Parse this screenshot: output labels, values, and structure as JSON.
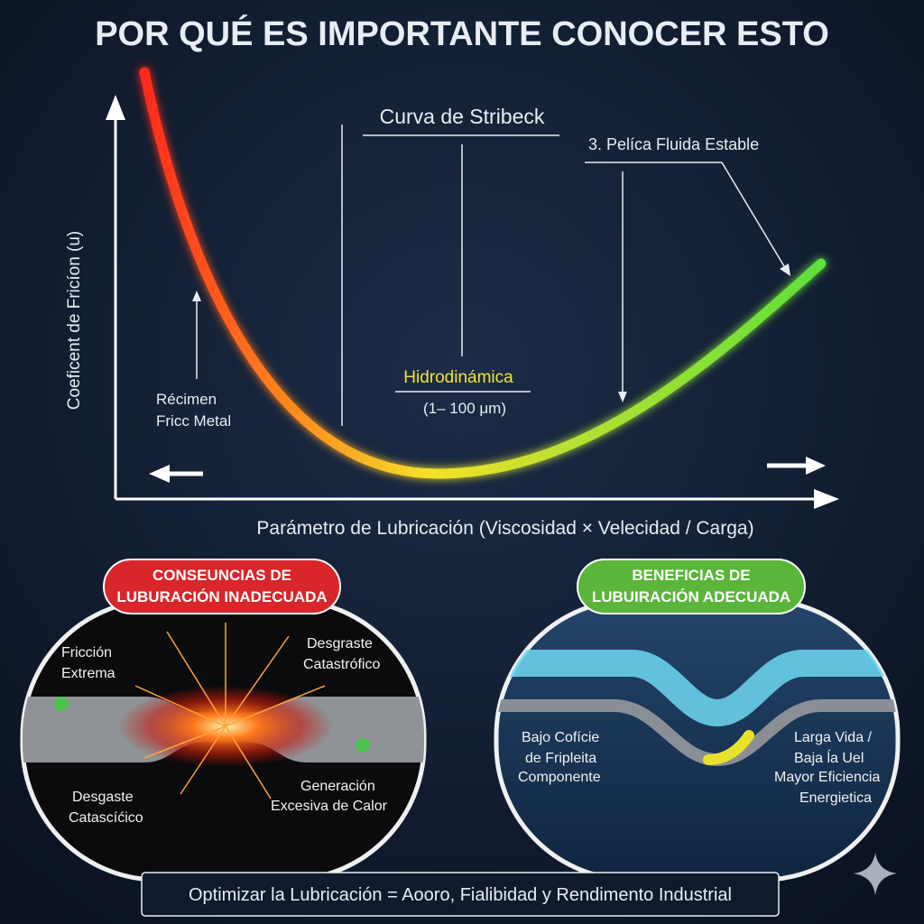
{
  "header": {
    "title": "POR QUÉ ES IMPORTANTE CONOCER ESTO"
  },
  "stribeck": {
    "title": "Curva de Stribeck",
    "y_axis_label": "Coeficent de Fricíon (u)",
    "x_axis_label": "Parámetro de Lubricación (Viscosidad × Velecidad / Carga)",
    "film_label": "3. Pelíca Fluida Estable",
    "regime_label": [
      "Récimen",
      "Fricc Metal"
    ],
    "hydro_label": "Hidrodinámica",
    "hydro_range": "(1– 100 μm)"
  },
  "panels": [
    {
      "badge": [
        "CONSEUNCIAS DE",
        "LUBURACIÓN INADECUADA"
      ],
      "labels": [
        [
          "Fricción",
          "Extrema"
        ],
        [
          "Desgraste",
          "Catastrófico"
        ],
        [
          "Desgaste",
          "Catascíćico"
        ],
        [
          "Generación",
          "Excesiva de Calor"
        ]
      ]
    },
    {
      "badge": [
        "BENEFICIAS DE",
        "LUBUIRACIÓN ADECUADA"
      ],
      "labels": [
        [
          "Bajo Cofície",
          "de Fripleita",
          "Componente"
        ],
        [
          "Larga Vida /",
          "Baja ĺa Uel",
          "Mayor Eficiencia",
          "Energietica"
        ]
      ]
    }
  ],
  "footer": {
    "text": "Optimizar la Lubricación = Aooro, Fialibidad y Rendimento Industrial"
  }
}
